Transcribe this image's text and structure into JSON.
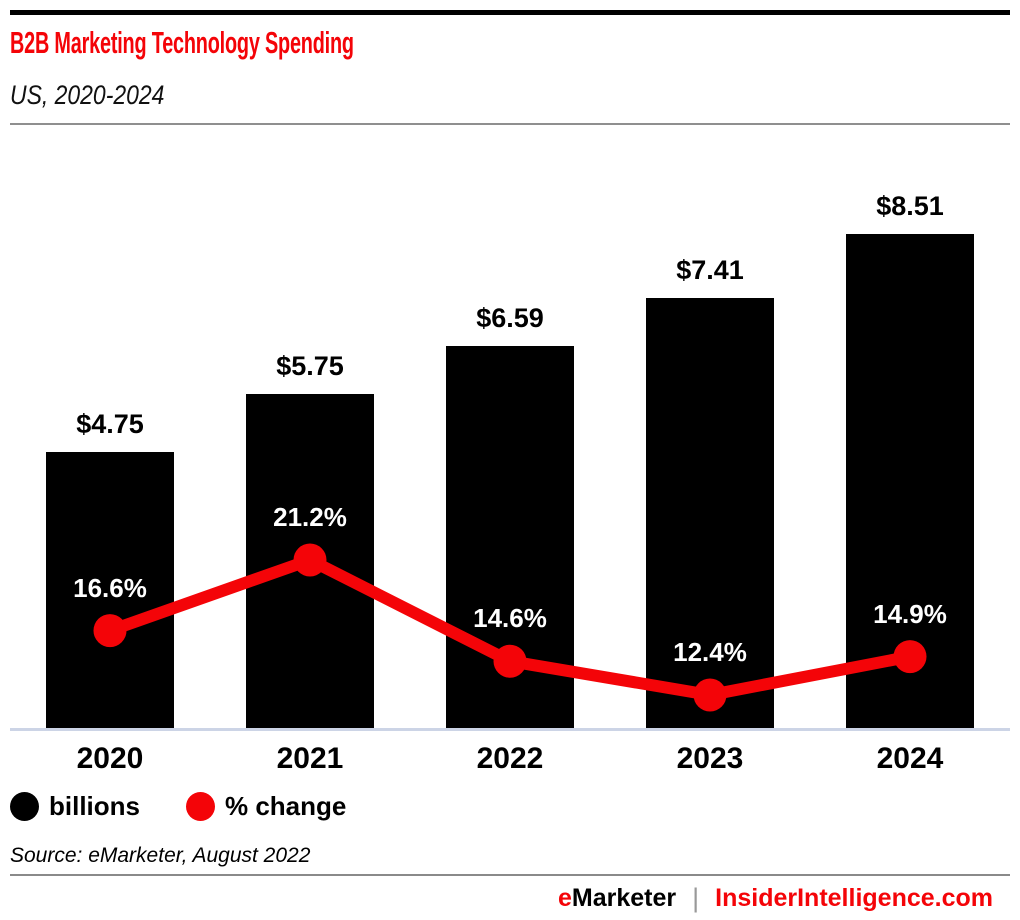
{
  "header": {
    "title": "B2B Marketing Technology Spending",
    "subtitle": "US, 2020-2024"
  },
  "chart_data": {
    "type": "combo-bar-line",
    "title": "B2B Marketing Technology Spending",
    "subtitle": "US, 2020-2024",
    "categories": [
      "2020",
      "2021",
      "2022",
      "2023",
      "2024"
    ],
    "series": [
      {
        "name": "billions",
        "type": "bar",
        "color": "#000000",
        "values": [
          4.75,
          5.75,
          6.59,
          7.41,
          8.51
        ],
        "labels": [
          "$4.75",
          "$5.75",
          "$6.59",
          "$7.41",
          "$8.51"
        ]
      },
      {
        "name": "% change",
        "type": "line",
        "color": "#f40408",
        "values": [
          16.6,
          21.2,
          14.6,
          12.4,
          14.9
        ],
        "labels": [
          "16.6%",
          "21.2%",
          "14.6%",
          "12.4%",
          "14.9%"
        ]
      }
    ],
    "xlabel": "",
    "ylabel": "",
    "grid": false,
    "y_axis_visible": false,
    "legend_position": "bottom-left"
  },
  "legend": {
    "items": [
      {
        "label": "billions",
        "color": "#000000"
      },
      {
        "label": "% change",
        "color": "#f40408"
      }
    ]
  },
  "source_note": "Source: eMarketer, August 2022",
  "footer": {
    "brand_first_letter": "e",
    "brand_rest": "Marketer",
    "separator": "|",
    "site": "InsiderIntelligence.com"
  },
  "colors": {
    "accent_red": "#f40408",
    "bar_black": "#000000",
    "axis_line": "#ccd4e6",
    "divider_gray": "#8a8a8a"
  }
}
